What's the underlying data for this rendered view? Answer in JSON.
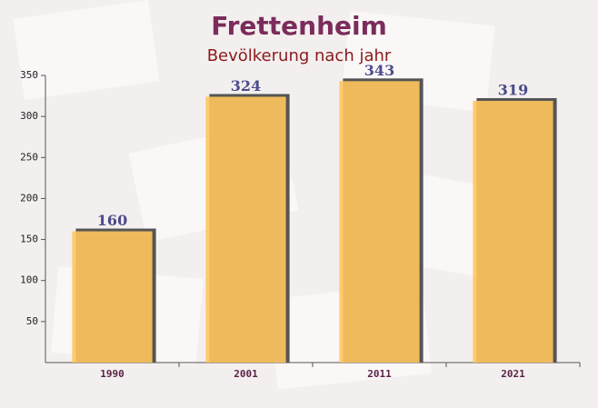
{
  "chart_data": {
    "type": "bar",
    "title": "Frettenheim",
    "subtitle": "Bevölkerung nach jahr",
    "categories": [
      "1990",
      "2001",
      "2011",
      "2021"
    ],
    "values": [
      160,
      324,
      343,
      319
    ],
    "color": "#ffc55c",
    "ylim": [
      0,
      350
    ],
    "yticks": [
      50,
      100,
      150,
      200,
      250,
      300,
      350
    ],
    "grid": false
  }
}
